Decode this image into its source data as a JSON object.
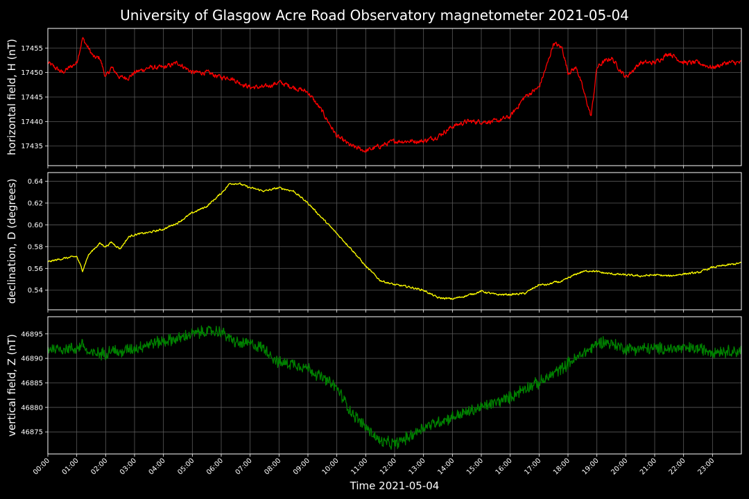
{
  "chart_data": {
    "type": "line",
    "title": "University of Glasgow Acre Road Observatory magnetometer 2021-05-04",
    "xlabel": "Time 2021-05-04",
    "x_hours": [
      0,
      0.5,
      1.0,
      1.2,
      1.4,
      1.6,
      1.8,
      2.0,
      2.2,
      2.5,
      2.8,
      3.0,
      3.5,
      4.0,
      4.5,
      5.0,
      5.5,
      6.0,
      6.3,
      6.6,
      7.0,
      7.5,
      8.0,
      8.5,
      9.0,
      9.5,
      10.0,
      10.5,
      11.0,
      11.5,
      12.0,
      12.5,
      13.0,
      13.5,
      14.0,
      14.5,
      15.0,
      15.5,
      16.0,
      16.5,
      17.0,
      17.3,
      17.5,
      17.8,
      18.0,
      18.3,
      18.5,
      18.8,
      19.0,
      19.2,
      19.5,
      20.0,
      20.5,
      21.0,
      21.5,
      22.0,
      22.5,
      23.0,
      23.5,
      24.0
    ],
    "x_tick_labels": [
      "00:00",
      "01:00",
      "02:00",
      "03:00",
      "04:00",
      "05:00",
      "06:00",
      "07:00",
      "08:00",
      "09:00",
      "10:00",
      "11:00",
      "12:00",
      "13:00",
      "14:00",
      "15:00",
      "16:00",
      "17:00",
      "18:00",
      "19:00",
      "20:00",
      "21:00",
      "22:00",
      "23:00"
    ],
    "grid": true,
    "panels": [
      {
        "name": "H",
        "ylabel": "horizontal field, H (nT)",
        "color": "#ff0000",
        "ylim": [
          17431,
          17459
        ],
        "yticks": [
          17435,
          17440,
          17445,
          17450,
          17455
        ],
        "noise": 0.8,
        "values": [
          17452,
          17450,
          17452,
          17457,
          17455,
          17453,
          17453,
          17449,
          17451,
          17449,
          17449,
          17450,
          17451,
          17451,
          17452,
          17450,
          17450,
          17449,
          17449,
          17448,
          17447,
          17447,
          17448,
          17447,
          17446,
          17442,
          17437,
          17435,
          17434,
          17435,
          17436,
          17436,
          17436,
          17437,
          17439,
          17440,
          17440,
          17440,
          17441,
          17445,
          17447,
          17452,
          17456,
          17455,
          17450,
          17451,
          17447,
          17441,
          17451,
          17452,
          17453,
          17449,
          17452,
          17452,
          17454,
          17452,
          17452,
          17451,
          17452,
          17452
        ]
      },
      {
        "name": "D",
        "ylabel": "declination, D (degrees)",
        "color": "#ffff00",
        "ylim": [
          0.522,
          0.648
        ],
        "yticks": [
          0.54,
          0.56,
          0.58,
          0.6,
          0.62,
          0.64
        ],
        "noise": 0.0015,
        "values": [
          0.566,
          0.569,
          0.571,
          0.558,
          0.572,
          0.578,
          0.583,
          0.58,
          0.584,
          0.578,
          0.589,
          0.591,
          0.593,
          0.596,
          0.602,
          0.611,
          0.617,
          0.629,
          0.638,
          0.638,
          0.634,
          0.631,
          0.634,
          0.631,
          0.62,
          0.606,
          0.592,
          0.578,
          0.562,
          0.549,
          0.545,
          0.543,
          0.54,
          0.533,
          0.532,
          0.535,
          0.539,
          0.536,
          0.536,
          0.537,
          0.545,
          0.545,
          0.547,
          0.548,
          0.551,
          0.555,
          0.557,
          0.558,
          0.557,
          0.556,
          0.555,
          0.554,
          0.553,
          0.554,
          0.553,
          0.555,
          0.556,
          0.561,
          0.563,
          0.565
        ]
      },
      {
        "name": "Z",
        "ylabel": "vertical field, Z (nT)",
        "color": "#008000",
        "ylim": [
          46870.5,
          46898.5
        ],
        "yticks": [
          46875,
          46880,
          46885,
          46890,
          46895
        ],
        "noise": 1.0,
        "values": [
          46892,
          46892,
          46892,
          46893,
          46891,
          46891,
          46891,
          46891,
          46892,
          46891,
          46892,
          46892,
          46893,
          46893.5,
          46894,
          46895,
          46895.5,
          46895.5,
          46894,
          46893,
          46893,
          46892,
          46889,
          46889,
          46888,
          46886,
          46884,
          46879,
          46876,
          46873,
          46872.5,
          46874,
          46876,
          46877,
          46878,
          46879,
          46880,
          46881,
          46882,
          46884,
          46885,
          46886,
          46887,
          46888,
          46889,
          46890,
          46891,
          46892,
          46893,
          46893.5,
          46893,
          46892,
          46892,
          46892,
          46892,
          46892,
          46892,
          46891.5,
          46891.5,
          46891.5
        ]
      }
    ]
  }
}
